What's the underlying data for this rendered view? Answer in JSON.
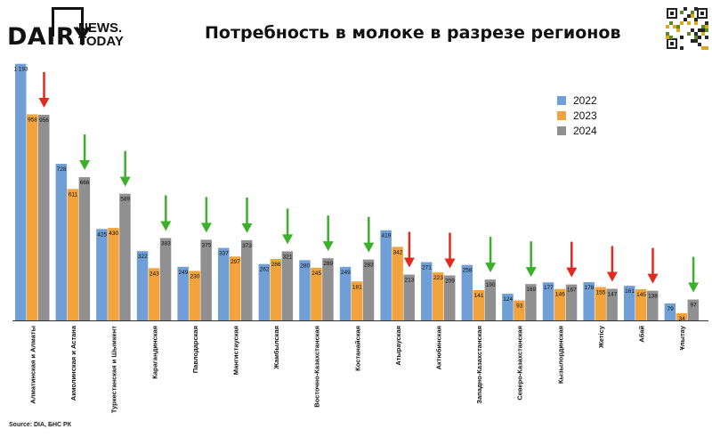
{
  "header": {
    "logo_main": "DAIRY",
    "logo_news": "NEWS.",
    "logo_today": "TODAY",
    "title": "Потребность в молоке в разрезе регионов"
  },
  "source": "Source: DIA, БНС РК",
  "colors": {
    "y2022": "#6f9fd6",
    "y2023": "#f2a33b",
    "y2024": "#909090",
    "arrow_down_red": "#e02a1d",
    "arrow_down_green": "#3db02a"
  },
  "chart_data": {
    "type": "bar",
    "title": "Потребность в молоке в разрезе регионов",
    "xlabel": "",
    "ylabel": "",
    "legend_position": "top-right",
    "grid": false,
    "categories": [
      "Алматинская и Алматы",
      "Акмолинская и Астана",
      "Туркестанская и Шымкент",
      "Карагандинская",
      "Павлодарская",
      "Мангистауская",
      "Жамбылская",
      "Восточно-Казахстанская",
      "Костанайская",
      "Атырауская",
      "Актюбинская",
      "Западно-Казахстанская",
      "Северо-Казахстанская",
      "Кызылординская",
      "Жетісу",
      "Абай",
      "Ұлытау"
    ],
    "series": [
      {
        "name": "2022",
        "values": [
          1193,
          728,
          425,
          322,
          249,
          337,
          262,
          280,
          249,
          419,
          271,
          258,
          124,
          177,
          178,
          161,
          79
        ]
      },
      {
        "name": "2023",
        "values": [
          958,
          611,
          430,
          243,
          230,
          297,
          286,
          245,
          181,
          342,
          223,
          141,
          93,
          146,
          155,
          145,
          34
        ]
      },
      {
        "name": "2024",
        "values": [
          956,
          666,
          589,
          383,
          375,
          373,
          321,
          289,
          283,
          213,
          209,
          190,
          169,
          167,
          147,
          138,
          97
        ]
      }
    ],
    "value_labels": {
      "2022": [
        "1 193",
        "728",
        "425",
        "322",
        "249",
        "337",
        "262",
        "280",
        "249",
        "419",
        "271",
        "258",
        "124",
        "177",
        "178",
        "161",
        "79"
      ],
      "2023": [
        "958",
        "611",
        "430",
        "243",
        "230",
        "297",
        "286",
        "245",
        "181",
        "342",
        "223",
        "141",
        "93",
        "146",
        "155",
        "145",
        "34"
      ],
      "2024": [
        "956",
        "666",
        "589",
        "383",
        "375",
        "373",
        "321",
        "289",
        "283",
        "213",
        "209",
        "190",
        "169",
        "167",
        "147",
        "138",
        "97"
      ]
    },
    "trend_arrows": [
      "red",
      "green",
      "green",
      "green",
      "green",
      "green",
      "green",
      "green",
      "green",
      "red",
      "red",
      "green",
      "green",
      "red",
      "red",
      "red",
      "green"
    ],
    "ylim": [
      0,
      1200
    ]
  }
}
